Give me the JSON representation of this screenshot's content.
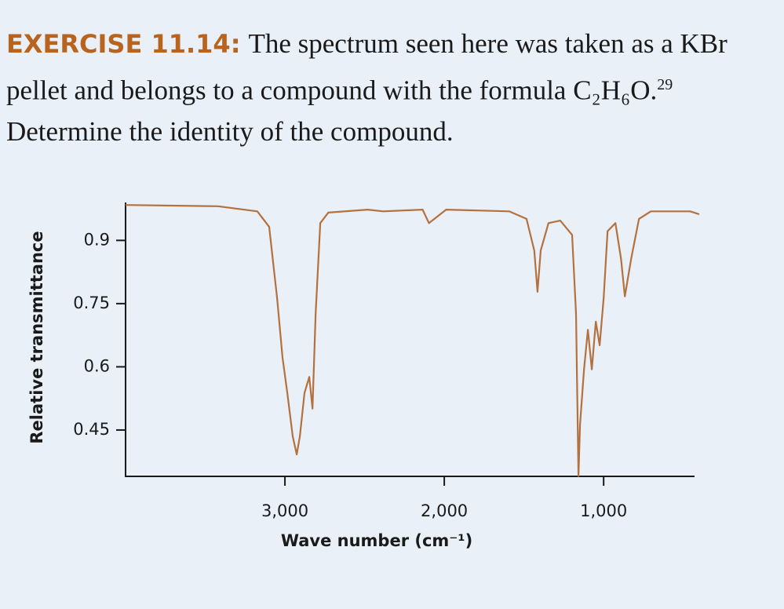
{
  "exercise": {
    "label": "EXERCISE 11.14:",
    "text": "The spectrum seen here was taken as a KBr pellet and belongs to a compound with the formula",
    "formula": "C₂H₆O.",
    "footnote": "29",
    "question": "Determine the identity of the compound."
  },
  "chart_data": {
    "type": "line",
    "x_label": "Wave number (cm⁻¹)",
    "y_label": "Relative transmittance",
    "xlim": [
      4000,
      400
    ],
    "ylim": [
      0.34,
      0.99
    ],
    "xticks": [
      {
        "value": 3000,
        "label": "3,000"
      },
      {
        "value": 2000,
        "label": "2,000"
      },
      {
        "value": 1000,
        "label": "1,000"
      }
    ],
    "yticks": [
      0.45,
      0.6,
      0.75,
      0.9
    ],
    "x": [
      4000,
      3420,
      3173,
      3099,
      3049,
      3015,
      2985,
      2951,
      2926,
      2906,
      2877,
      2847,
      2827,
      2807,
      2778,
      2728,
      2481,
      2383,
      2136,
      2096,
      2062,
      1988,
      1593,
      1484,
      1435,
      1415,
      1395,
      1346,
      1272,
      1198,
      1173,
      1158,
      1148,
      1123,
      1099,
      1074,
      1049,
      1025,
      1000,
      975,
      926,
      891,
      867,
      827,
      778,
      704,
      457,
      400
    ],
    "series": [
      {
        "color": "#b3713f",
        "values": [
          0.984,
          0.981,
          0.969,
          0.932,
          0.763,
          0.622,
          0.538,
          0.435,
          0.392,
          0.435,
          0.538,
          0.576,
          0.501,
          0.726,
          0.941,
          0.966,
          0.973,
          0.969,
          0.973,
          0.941,
          0.951,
          0.973,
          0.969,
          0.951,
          0.876,
          0.778,
          0.876,
          0.941,
          0.947,
          0.913,
          0.726,
          0.341,
          0.463,
          0.594,
          0.688,
          0.594,
          0.707,
          0.651,
          0.763,
          0.922,
          0.941,
          0.857,
          0.767,
          0.857,
          0.951,
          0.969,
          0.969,
          0.962
        ]
      }
    ]
  }
}
